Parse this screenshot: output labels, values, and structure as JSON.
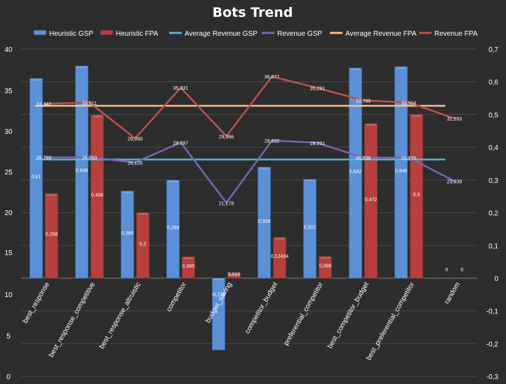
{
  "chart_data": {
    "type": "bar",
    "title": "Bots Trend",
    "categories": [
      "best_response",
      "best_response_competitive",
      "best_response_altruistic",
      "competitor",
      "budget_saving",
      "competitor_budget",
      "preferential_competitor",
      "best_competitor_budget",
      "best_preferential_competitor",
      "random"
    ],
    "left_axis": {
      "min": 0,
      "max": 40,
      "ticks": [
        "0",
        "5",
        "10",
        "15",
        "20",
        "25",
        "30",
        "35",
        "40"
      ],
      "note": "10–15 section compressed (broken axis)"
    },
    "right_axis": {
      "min": -0.3,
      "max": 0.7,
      "ticks": [
        "-0,3",
        "-0,2",
        "-0,1",
        "0",
        "0,1",
        "0,2",
        "0,3",
        "0,4",
        "0,5",
        "0,6",
        "0,7"
      ]
    },
    "series": [
      {
        "name": "Heuristic GSP",
        "kind": "bar",
        "axis": "right",
        "color": "#5b8fd6",
        "values": [
          0.61,
          0.648,
          0.266,
          0.299,
          -0.219,
          0.339,
          0.302,
          0.642,
          0.646,
          0
        ],
        "labels": [
          "0,61",
          "0,648",
          "0,266",
          "0,299",
          "-0,219",
          "0,339",
          "0,302",
          "0,642",
          "0,646",
          "0"
        ]
      },
      {
        "name": "Heuristic FPA",
        "kind": "bar",
        "axis": "right",
        "color": "#b5403d",
        "values": [
          0.258,
          0.498,
          0.2,
          0.065,
          0.015,
          0.12434,
          0.066,
          0.472,
          0.5,
          0
        ],
        "labels": [
          "0,258",
          "0,498",
          "0,2",
          "0,065",
          "0,015",
          "0,12434",
          "0,066",
          "0,472",
          "0,5",
          "0"
        ]
      },
      {
        "name": "Average Revenue GSP",
        "kind": "line",
        "axis": "left",
        "color": "#4fb7cf",
        "values": [
          26.5,
          26.5,
          26.5,
          26.5,
          26.5,
          26.5,
          26.5,
          26.5,
          26.5,
          26.5
        ]
      },
      {
        "name": "Revenue GSP",
        "kind": "line",
        "axis": "left",
        "color": "#7d62b8",
        "values": [
          26.769,
          26.763,
          26.126,
          28.597,
          21.178,
          28.832,
          28.551,
          26.738,
          26.735,
          23.839
        ],
        "labels": [
          "26,769",
          "26,763",
          "26,126",
          "28,597",
          "21,178",
          "28,832",
          "28,551",
          "26,738",
          "26,735",
          "23,839"
        ]
      },
      {
        "name": "Average Revenue FPA",
        "kind": "line",
        "axis": "left",
        "color": "#f5be8e",
        "values": [
          33.1,
          33.1,
          33.1,
          33.1,
          33.1,
          33.1,
          33.1,
          33.1,
          33.1,
          33.1
        ]
      },
      {
        "name": "Revenue FPA",
        "kind": "line",
        "axis": "left",
        "color": "#c0504d",
        "values": [
          33.342,
          33.511,
          29.099,
          35.331,
          29.366,
          36.677,
          35.291,
          33.769,
          33.504,
          31.553
        ],
        "labels": [
          "33,342",
          "33,511",
          "29,099",
          "35,331",
          "29,366",
          "36,677",
          "35,291",
          "33,769",
          "33,504",
          "31,553"
        ]
      }
    ],
    "legend": "top",
    "grid": true
  }
}
